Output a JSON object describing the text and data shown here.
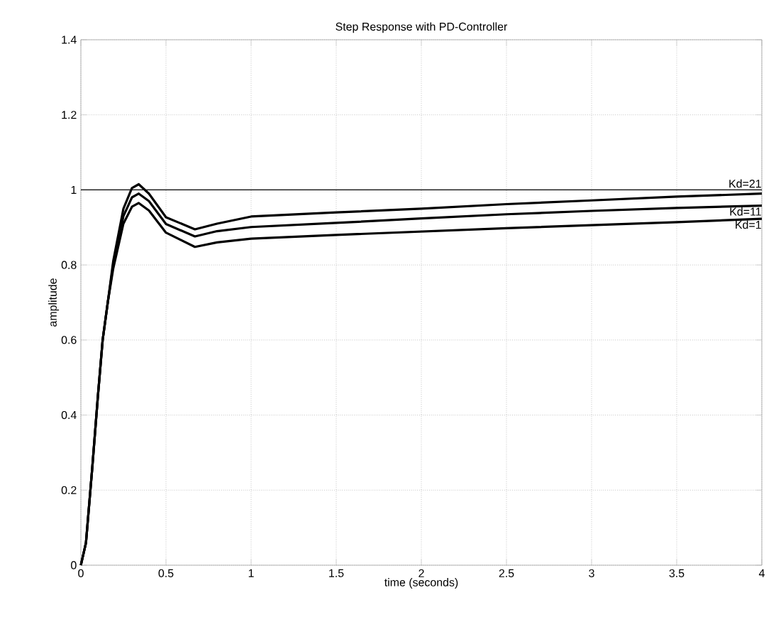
{
  "chart_data": {
    "type": "line",
    "title": "Step Response with PD-Controller",
    "xlabel": "time (seconds)",
    "ylabel": "amplitude",
    "x": [
      0,
      0.03,
      0.067,
      0.1,
      0.128,
      0.158,
      0.19,
      0.25,
      0.3,
      0.34,
      0.4,
      0.5,
      0.67,
      0.8,
      1,
      1.5,
      2,
      2.5,
      3,
      3.5,
      4
    ],
    "series": [
      {
        "name": "Kd=21",
        "color": "#000000",
        "values": [
          0,
          0.06,
          0.26,
          0.45,
          0.6,
          0.7,
          0.81,
          0.95,
          1.005,
          1.015,
          0.99,
          0.927,
          0.895,
          0.91,
          0.929,
          0.94,
          0.95,
          0.962,
          0.972,
          0.982,
          0.99
        ]
      },
      {
        "name": "Kd=11",
        "color": "#000000",
        "values": [
          0,
          0.06,
          0.26,
          0.45,
          0.6,
          0.7,
          0.8,
          0.93,
          0.98,
          0.99,
          0.97,
          0.909,
          0.876,
          0.89,
          0.901,
          0.912,
          0.924,
          0.935,
          0.944,
          0.952,
          0.958
        ]
      },
      {
        "name": "Kd=1",
        "color": "#000000",
        "values": [
          0,
          0.06,
          0.26,
          0.45,
          0.6,
          0.7,
          0.79,
          0.91,
          0.955,
          0.965,
          0.945,
          0.886,
          0.848,
          0.86,
          0.87,
          0.88,
          0.889,
          0.898,
          0.906,
          0.914,
          0.923
        ]
      }
    ],
    "xlim": [
      0,
      4
    ],
    "xticks": [
      0,
      0.5,
      1,
      1.5,
      2,
      2.5,
      3,
      3.5,
      4
    ],
    "ylim": [
      0,
      1.4
    ],
    "yticks": [
      0,
      0.2,
      0.4,
      0.6,
      0.8,
      1,
      1.2,
      1.4
    ],
    "ref_lines": [
      {
        "axis": "y",
        "value": 1,
        "color": "#000000"
      }
    ],
    "grid": true,
    "legend": false,
    "marker": "none",
    "line_style": "solid"
  }
}
